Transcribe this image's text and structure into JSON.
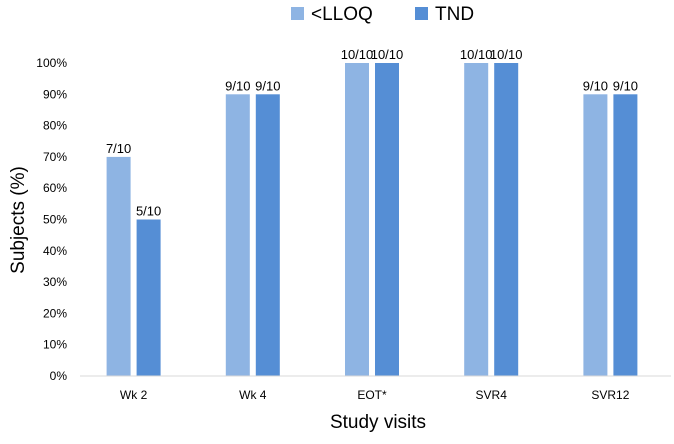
{
  "chart_data": {
    "type": "bar",
    "categories": [
      "Wk 2",
      "Wk 4",
      "EOT*",
      "SVR4",
      "SVR12"
    ],
    "series": [
      {
        "name": "<LLOQ",
        "color": "#8eb4e3",
        "values": [
          70,
          90,
          100,
          100,
          90
        ],
        "labels": [
          "7/10",
          "9/10",
          "10/10",
          "10/10",
          "9/10"
        ]
      },
      {
        "name": "TND",
        "color": "#558ed5",
        "values": [
          50,
          90,
          100,
          100,
          90
        ],
        "labels": [
          "5/10",
          "9/10",
          "10/10",
          "10/10",
          "9/10"
        ]
      }
    ],
    "xlabel": "Study visits",
    "ylabel": "Subjects (%)",
    "ylim": [
      0,
      100
    ],
    "yticks": [
      "0%",
      "10%",
      "20%",
      "30%",
      "40%",
      "50%",
      "60%",
      "70%",
      "80%",
      "90%",
      "100%"
    ],
    "grid": false,
    "legend_position": "top-center"
  }
}
